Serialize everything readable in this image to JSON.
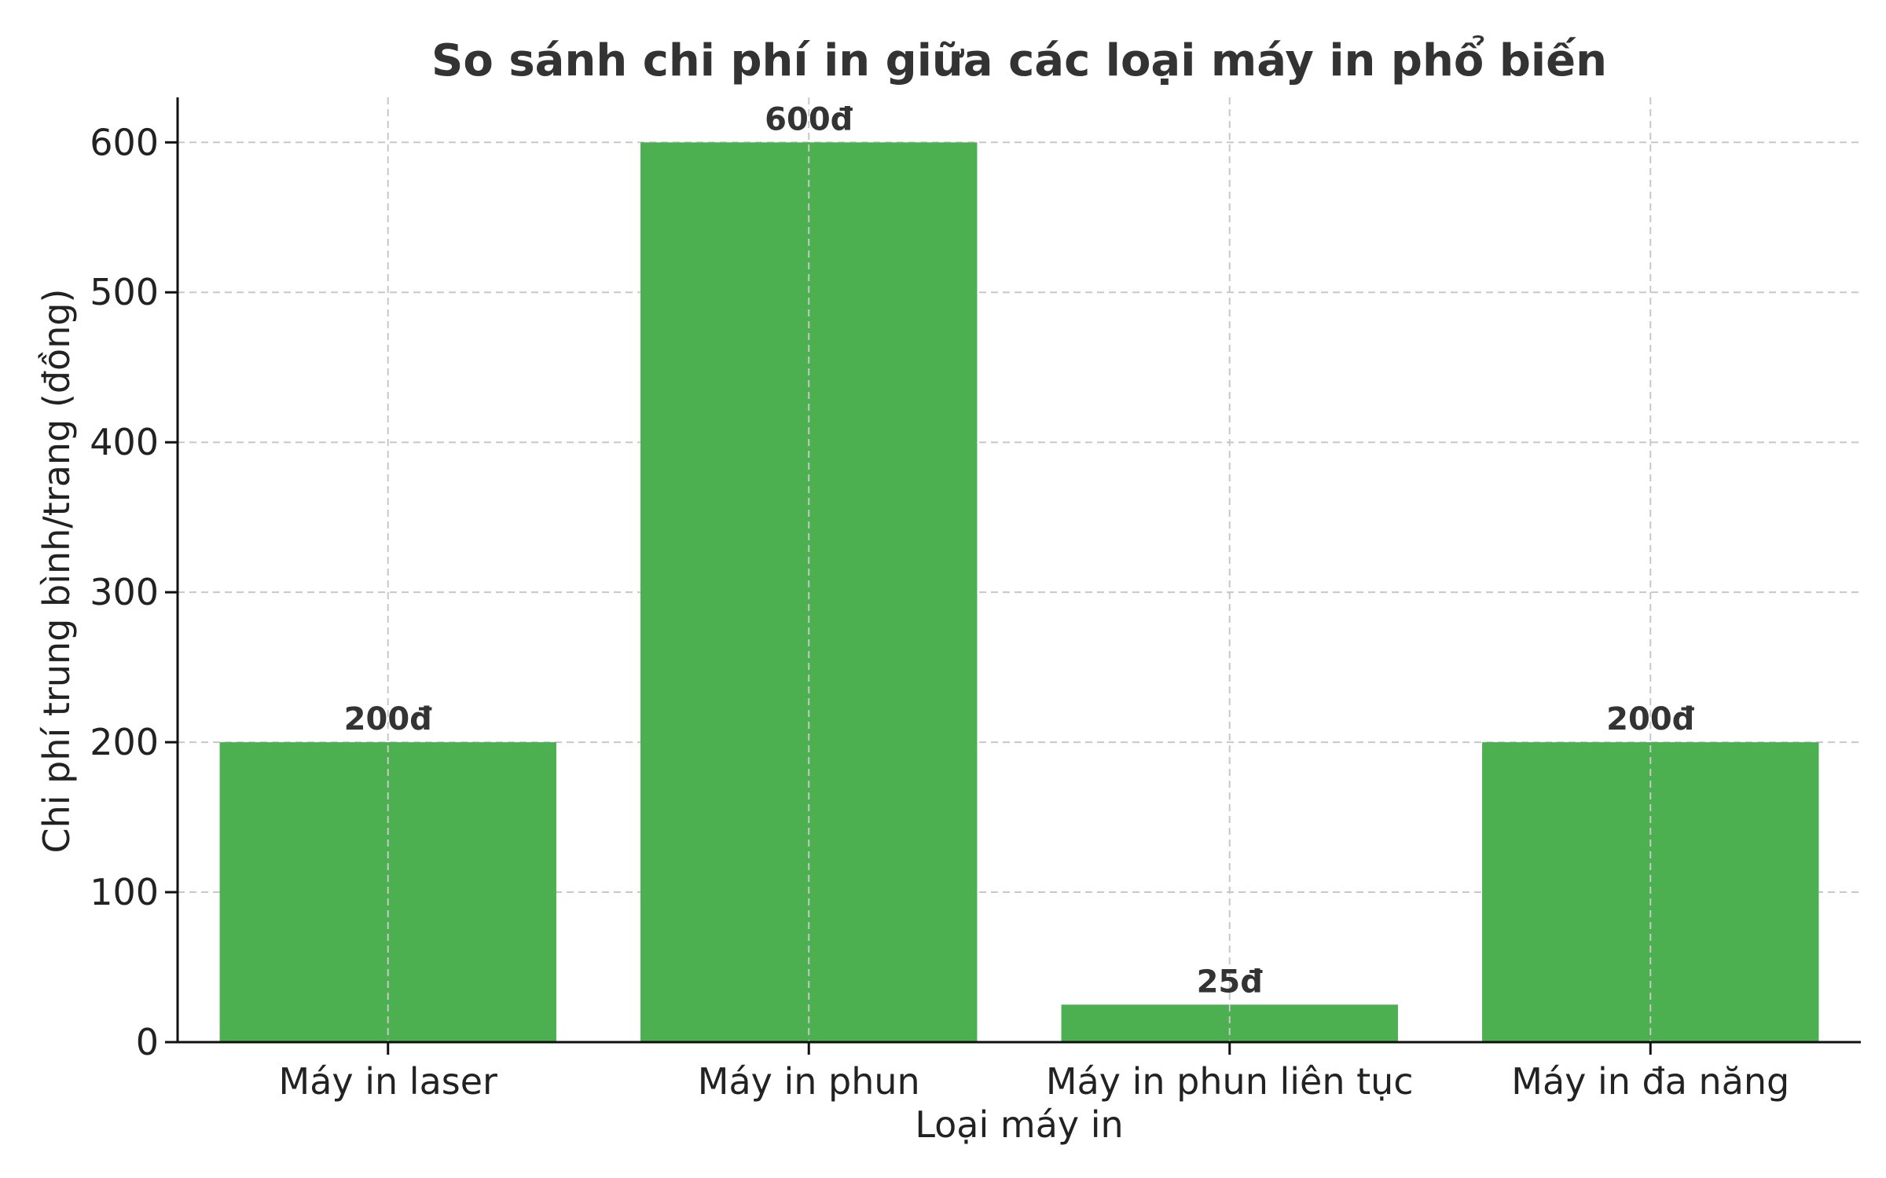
{
  "chart_data": {
    "type": "bar",
    "title": "So sánh chi phí in giữa các loại máy in phổ biến",
    "xlabel": "Loại máy in",
    "ylabel": "Chi phí trung bình/trang (đồng)",
    "categories": [
      "Máy in laser",
      "Máy in phun",
      "Máy in phun liên tục",
      "Máy in đa năng"
    ],
    "values": [
      200,
      600,
      25,
      200
    ],
    "value_labels": [
      "200đ",
      "600đ",
      "25đ",
      "200đ"
    ],
    "y_ticks": [
      0,
      100,
      200,
      300,
      400,
      500,
      600
    ],
    "ylim": [
      0,
      630
    ],
    "grid": true,
    "legend": "none",
    "colors": {
      "bar": "#4caf50",
      "title": "#333333",
      "text": "#222222",
      "grid": "#c8c8c8",
      "axis": "#111111"
    }
  }
}
